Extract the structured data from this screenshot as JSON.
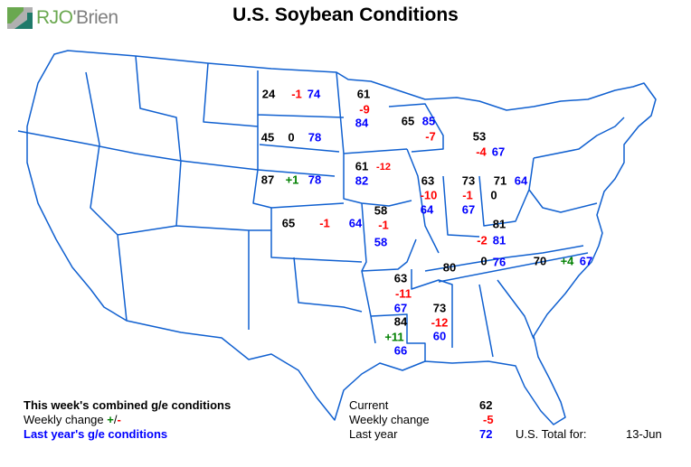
{
  "title": "U.S. Soybean Conditions",
  "logo": {
    "text_rj": "RJO",
    "text_brien": "'Brien",
    "colors": {
      "green": "#6aa84f",
      "gray": "#808080",
      "teal": "#1f7a6a"
    }
  },
  "colors": {
    "current": "#000000",
    "negative_change": "#ff0000",
    "positive_change": "#008000",
    "last_year": "#0000ff",
    "borders": "#1060d0"
  },
  "states": [
    {
      "state": "ND",
      "current": "24",
      "change": "-1",
      "last_year": "74"
    },
    {
      "state": "SD",
      "current": "45",
      "change": "0",
      "last_year": "78"
    },
    {
      "state": "NE",
      "current": "87",
      "change": "+1",
      "last_year": "78"
    },
    {
      "state": "KS",
      "current": "65",
      "change": "-1",
      "last_year": "64"
    },
    {
      "state": "MN",
      "current": "61",
      "change": "-9",
      "last_year": "84"
    },
    {
      "state": "WI",
      "current": "65",
      "change": "-7",
      "last_year": "85"
    },
    {
      "state": "MI",
      "current": "53",
      "change": "-4",
      "last_year": "67"
    },
    {
      "state": "IA",
      "current": "61",
      "change": "-12",
      "last_year": "82"
    },
    {
      "state": "IL",
      "current": "63",
      "change": "-10",
      "last_year": "64"
    },
    {
      "state": "IN",
      "current": "73",
      "change": "-1",
      "last_year": "67"
    },
    {
      "state": "OH",
      "current": "71",
      "change": "0",
      "last_year": "64"
    },
    {
      "state": "MO",
      "current": "58",
      "change": "-1",
      "last_year": "58"
    },
    {
      "state": "KY",
      "current": "81",
      "change": "-2",
      "last_year": "81"
    },
    {
      "state": "TN",
      "current": "80",
      "change": "0",
      "last_year": "76"
    },
    {
      "state": "NC",
      "current": "70",
      "change": "+4",
      "last_year": "67"
    },
    {
      "state": "AR",
      "current": "63",
      "change": "-11",
      "last_year": "67"
    },
    {
      "state": "MS",
      "current": "73",
      "change": "-12",
      "last_year": "60"
    },
    {
      "state": "LA",
      "current": "84",
      "change": "+11",
      "last_year": "66"
    }
  ],
  "legend": {
    "line1": "This week's combined g/e conditions",
    "line2": "Weekly change",
    "line2_plus": "+",
    "line2_slash": "/",
    "line2_minus": "-",
    "line3": "Last year's g/e conditions"
  },
  "summary": {
    "current_label": "Current",
    "current_value": "62",
    "change_label": "Weekly change",
    "change_value": "-5",
    "last_year_label": "Last year",
    "last_year_value": "72",
    "total_label": "U.S. Total for:",
    "date": "13-Jun"
  }
}
